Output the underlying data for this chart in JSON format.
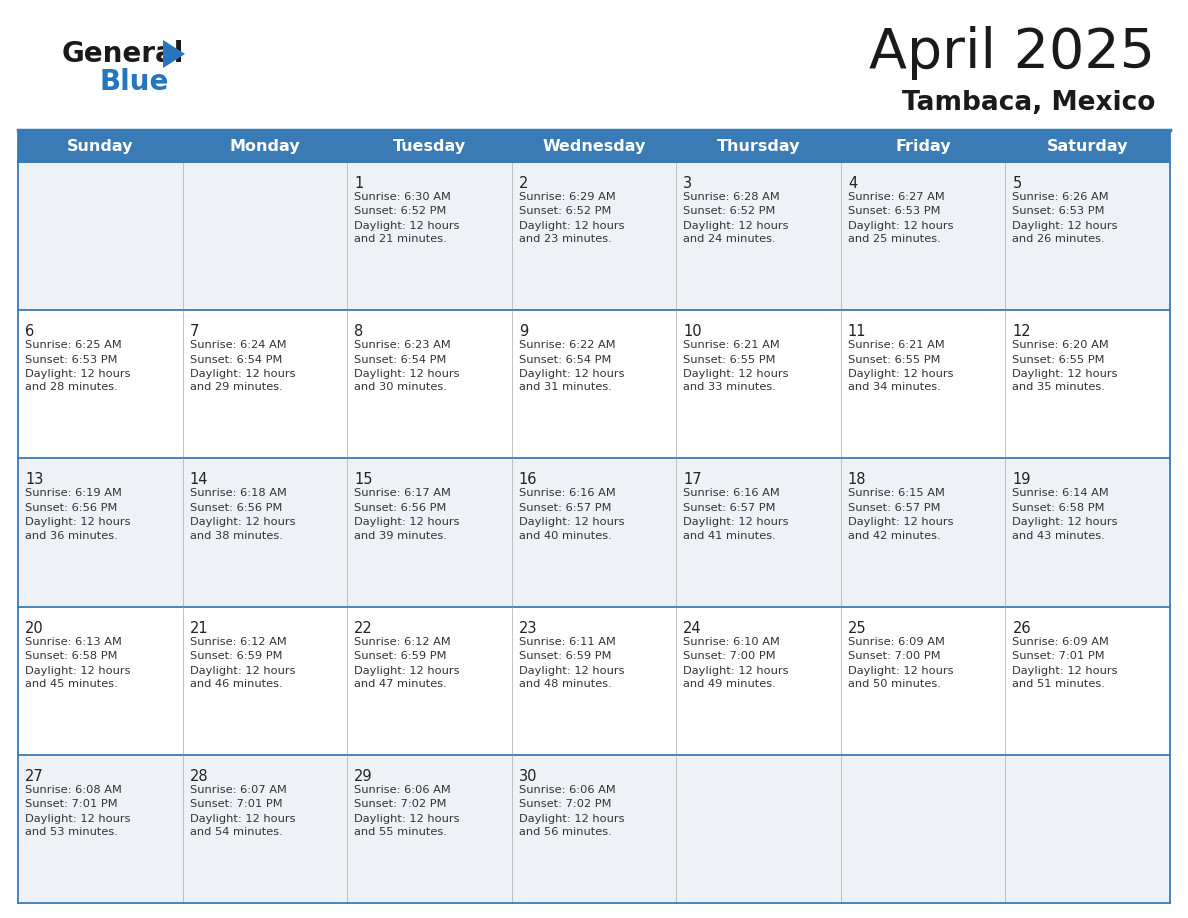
{
  "title": "April 2025",
  "subtitle": "Tambaca, Mexico",
  "header_bg_color": "#3a7ab5",
  "header_text_color": "#ffffff",
  "odd_row_bg": "#eef2f7",
  "even_row_bg": "#ffffff",
  "border_color": "#3a7ab5",
  "cell_border_color": "#3a7ab5",
  "day_headers": [
    "Sunday",
    "Monday",
    "Tuesday",
    "Wednesday",
    "Thursday",
    "Friday",
    "Saturday"
  ],
  "weeks": [
    [
      {
        "day": "",
        "sunrise": "",
        "sunset": "",
        "daylight": ""
      },
      {
        "day": "",
        "sunrise": "",
        "sunset": "",
        "daylight": ""
      },
      {
        "day": "1",
        "sunrise": "Sunrise: 6:30 AM",
        "sunset": "Sunset: 6:52 PM",
        "daylight": "Daylight: 12 hours\nand 21 minutes."
      },
      {
        "day": "2",
        "sunrise": "Sunrise: 6:29 AM",
        "sunset": "Sunset: 6:52 PM",
        "daylight": "Daylight: 12 hours\nand 23 minutes."
      },
      {
        "day": "3",
        "sunrise": "Sunrise: 6:28 AM",
        "sunset": "Sunset: 6:52 PM",
        "daylight": "Daylight: 12 hours\nand 24 minutes."
      },
      {
        "day": "4",
        "sunrise": "Sunrise: 6:27 AM",
        "sunset": "Sunset: 6:53 PM",
        "daylight": "Daylight: 12 hours\nand 25 minutes."
      },
      {
        "day": "5",
        "sunrise": "Sunrise: 6:26 AM",
        "sunset": "Sunset: 6:53 PM",
        "daylight": "Daylight: 12 hours\nand 26 minutes."
      }
    ],
    [
      {
        "day": "6",
        "sunrise": "Sunrise: 6:25 AM",
        "sunset": "Sunset: 6:53 PM",
        "daylight": "Daylight: 12 hours\nand 28 minutes."
      },
      {
        "day": "7",
        "sunrise": "Sunrise: 6:24 AM",
        "sunset": "Sunset: 6:54 PM",
        "daylight": "Daylight: 12 hours\nand 29 minutes."
      },
      {
        "day": "8",
        "sunrise": "Sunrise: 6:23 AM",
        "sunset": "Sunset: 6:54 PM",
        "daylight": "Daylight: 12 hours\nand 30 minutes."
      },
      {
        "day": "9",
        "sunrise": "Sunrise: 6:22 AM",
        "sunset": "Sunset: 6:54 PM",
        "daylight": "Daylight: 12 hours\nand 31 minutes."
      },
      {
        "day": "10",
        "sunrise": "Sunrise: 6:21 AM",
        "sunset": "Sunset: 6:55 PM",
        "daylight": "Daylight: 12 hours\nand 33 minutes."
      },
      {
        "day": "11",
        "sunrise": "Sunrise: 6:21 AM",
        "sunset": "Sunset: 6:55 PM",
        "daylight": "Daylight: 12 hours\nand 34 minutes."
      },
      {
        "day": "12",
        "sunrise": "Sunrise: 6:20 AM",
        "sunset": "Sunset: 6:55 PM",
        "daylight": "Daylight: 12 hours\nand 35 minutes."
      }
    ],
    [
      {
        "day": "13",
        "sunrise": "Sunrise: 6:19 AM",
        "sunset": "Sunset: 6:56 PM",
        "daylight": "Daylight: 12 hours\nand 36 minutes."
      },
      {
        "day": "14",
        "sunrise": "Sunrise: 6:18 AM",
        "sunset": "Sunset: 6:56 PM",
        "daylight": "Daylight: 12 hours\nand 38 minutes."
      },
      {
        "day": "15",
        "sunrise": "Sunrise: 6:17 AM",
        "sunset": "Sunset: 6:56 PM",
        "daylight": "Daylight: 12 hours\nand 39 minutes."
      },
      {
        "day": "16",
        "sunrise": "Sunrise: 6:16 AM",
        "sunset": "Sunset: 6:57 PM",
        "daylight": "Daylight: 12 hours\nand 40 minutes."
      },
      {
        "day": "17",
        "sunrise": "Sunrise: 6:16 AM",
        "sunset": "Sunset: 6:57 PM",
        "daylight": "Daylight: 12 hours\nand 41 minutes."
      },
      {
        "day": "18",
        "sunrise": "Sunrise: 6:15 AM",
        "sunset": "Sunset: 6:57 PM",
        "daylight": "Daylight: 12 hours\nand 42 minutes."
      },
      {
        "day": "19",
        "sunrise": "Sunrise: 6:14 AM",
        "sunset": "Sunset: 6:58 PM",
        "daylight": "Daylight: 12 hours\nand 43 minutes."
      }
    ],
    [
      {
        "day": "20",
        "sunrise": "Sunrise: 6:13 AM",
        "sunset": "Sunset: 6:58 PM",
        "daylight": "Daylight: 12 hours\nand 45 minutes."
      },
      {
        "day": "21",
        "sunrise": "Sunrise: 6:12 AM",
        "sunset": "Sunset: 6:59 PM",
        "daylight": "Daylight: 12 hours\nand 46 minutes."
      },
      {
        "day": "22",
        "sunrise": "Sunrise: 6:12 AM",
        "sunset": "Sunset: 6:59 PM",
        "daylight": "Daylight: 12 hours\nand 47 minutes."
      },
      {
        "day": "23",
        "sunrise": "Sunrise: 6:11 AM",
        "sunset": "Sunset: 6:59 PM",
        "daylight": "Daylight: 12 hours\nand 48 minutes."
      },
      {
        "day": "24",
        "sunrise": "Sunrise: 6:10 AM",
        "sunset": "Sunset: 7:00 PM",
        "daylight": "Daylight: 12 hours\nand 49 minutes."
      },
      {
        "day": "25",
        "sunrise": "Sunrise: 6:09 AM",
        "sunset": "Sunset: 7:00 PM",
        "daylight": "Daylight: 12 hours\nand 50 minutes."
      },
      {
        "day": "26",
        "sunrise": "Sunrise: 6:09 AM",
        "sunset": "Sunset: 7:01 PM",
        "daylight": "Daylight: 12 hours\nand 51 minutes."
      }
    ],
    [
      {
        "day": "27",
        "sunrise": "Sunrise: 6:08 AM",
        "sunset": "Sunset: 7:01 PM",
        "daylight": "Daylight: 12 hours\nand 53 minutes."
      },
      {
        "day": "28",
        "sunrise": "Sunrise: 6:07 AM",
        "sunset": "Sunset: 7:01 PM",
        "daylight": "Daylight: 12 hours\nand 54 minutes."
      },
      {
        "day": "29",
        "sunrise": "Sunrise: 6:06 AM",
        "sunset": "Sunset: 7:02 PM",
        "daylight": "Daylight: 12 hours\nand 55 minutes."
      },
      {
        "day": "30",
        "sunrise": "Sunrise: 6:06 AM",
        "sunset": "Sunset: 7:02 PM",
        "daylight": "Daylight: 12 hours\nand 56 minutes."
      },
      {
        "day": "",
        "sunrise": "",
        "sunset": "",
        "daylight": ""
      },
      {
        "day": "",
        "sunrise": "",
        "sunset": "",
        "daylight": ""
      },
      {
        "day": "",
        "sunrise": "",
        "sunset": "",
        "daylight": ""
      }
    ]
  ],
  "logo_color_general": "#1a1a1a",
  "logo_color_blue": "#2575bf",
  "logo_triangle_color": "#2575bf",
  "title_color": "#1a1a1a",
  "text_color": "#333333"
}
